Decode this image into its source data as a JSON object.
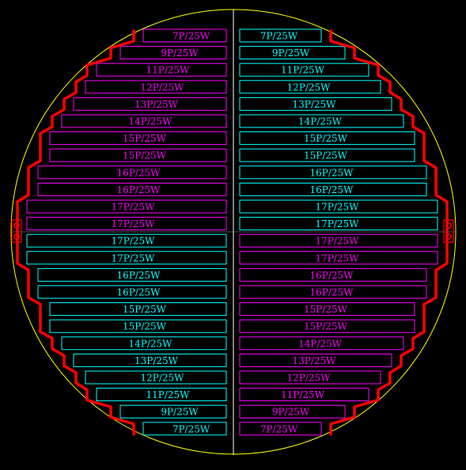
{
  "colors": {
    "background": "#000000",
    "outline_circle": "#ffff00",
    "center_line": "#ffffff",
    "tray_edge": "#ff0000",
    "magenta": "#ff00ff",
    "cyan": "#00ffff"
  },
  "strings": {
    "left": [
      {
        "label": "7P/25W",
        "color": "magenta"
      },
      {
        "label": "9P/25W",
        "color": "magenta"
      },
      {
        "label": "11P/25W",
        "color": "magenta"
      },
      {
        "label": "12P/25W",
        "color": "magenta"
      },
      {
        "label": "13P/25W",
        "color": "magenta"
      },
      {
        "label": "14P/25W",
        "color": "magenta"
      },
      {
        "label": "15P/25W",
        "color": "magenta"
      },
      {
        "label": "15P/25W",
        "color": "magenta"
      },
      {
        "label": "16P/25W",
        "color": "magenta"
      },
      {
        "label": "16P/25W",
        "color": "magenta"
      },
      {
        "label": "17P/25W",
        "color": "magenta"
      },
      {
        "label": "17P/25W",
        "color": "magenta"
      },
      {
        "label": "17P/25W",
        "color": "cyan"
      },
      {
        "label": "17P/25W",
        "color": "cyan"
      },
      {
        "label": "16P/25W",
        "color": "cyan"
      },
      {
        "label": "16P/25W",
        "color": "cyan"
      },
      {
        "label": "15P/25W",
        "color": "cyan"
      },
      {
        "label": "15P/25W",
        "color": "cyan"
      },
      {
        "label": "14P/25W",
        "color": "cyan"
      },
      {
        "label": "13P/25W",
        "color": "cyan"
      },
      {
        "label": "12P/25W",
        "color": "cyan"
      },
      {
        "label": "11P/25W",
        "color": "cyan"
      },
      {
        "label": "9P/25W",
        "color": "cyan"
      },
      {
        "label": "7P/25W",
        "color": "cyan"
      }
    ],
    "right": [
      {
        "label": "7P/25W",
        "color": "cyan"
      },
      {
        "label": "9P/25W",
        "color": "cyan"
      },
      {
        "label": "11P/25W",
        "color": "cyan"
      },
      {
        "label": "12P/25W",
        "color": "cyan"
      },
      {
        "label": "13P/25W",
        "color": "cyan"
      },
      {
        "label": "14P/25W",
        "color": "cyan"
      },
      {
        "label": "15P/25W",
        "color": "cyan"
      },
      {
        "label": "15P/25W",
        "color": "cyan"
      },
      {
        "label": "16P/25W",
        "color": "cyan"
      },
      {
        "label": "16P/25W",
        "color": "cyan"
      },
      {
        "label": "17P/25W",
        "color": "cyan"
      },
      {
        "label": "17P/25W",
        "color": "cyan"
      },
      {
        "label": "17P/25W",
        "color": "magenta"
      },
      {
        "label": "17P/25W",
        "color": "magenta"
      },
      {
        "label": "16P/25W",
        "color": "magenta"
      },
      {
        "label": "16P/25W",
        "color": "magenta"
      },
      {
        "label": "15P/25W",
        "color": "magenta"
      },
      {
        "label": "15P/25W",
        "color": "magenta"
      },
      {
        "label": "14P/25W",
        "color": "magenta"
      },
      {
        "label": "13P/25W",
        "color": "magenta"
      },
      {
        "label": "12P/25W",
        "color": "magenta"
      },
      {
        "label": "11P/25W",
        "color": "magenta"
      },
      {
        "label": "9P/25W",
        "color": "magenta"
      },
      {
        "label": "7P/25W",
        "color": "magenta"
      }
    ]
  }
}
